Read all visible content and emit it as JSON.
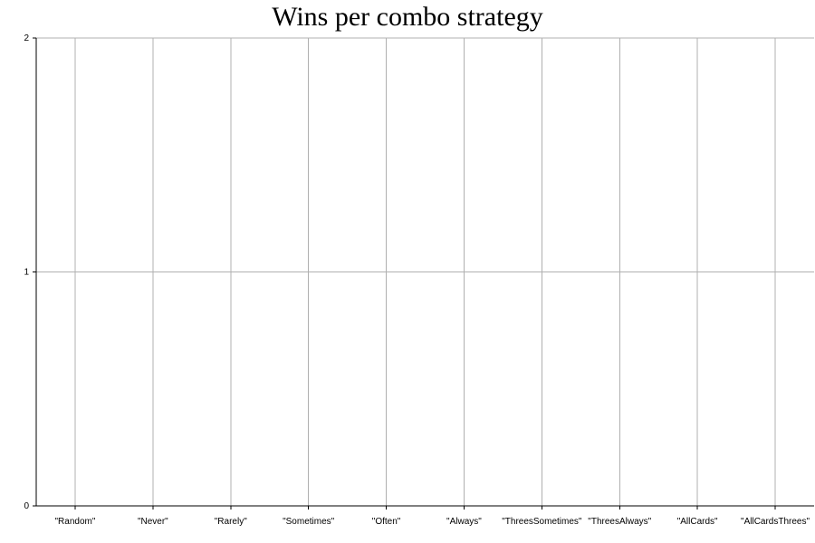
{
  "chart_data": {
    "type": "bar",
    "title": "Wins per combo strategy",
    "xlabel": "",
    "ylabel": "",
    "categories": [
      "\"Random\"",
      "\"Never\"",
      "\"Rarely\"",
      "\"Sometimes\"",
      "\"Often\"",
      "\"Always\"",
      "\"ThreesSometimes\"",
      "\"ThreesAlways\"",
      "\"AllCards\"",
      "\"AllCardsThrees\""
    ],
    "values": [
      0,
      0,
      0,
      0,
      0,
      0,
      0,
      0,
      0,
      0
    ],
    "y_ticks": [
      0,
      1,
      2
    ],
    "ylim": [
      0,
      2
    ],
    "grid": true,
    "legend": "none"
  }
}
